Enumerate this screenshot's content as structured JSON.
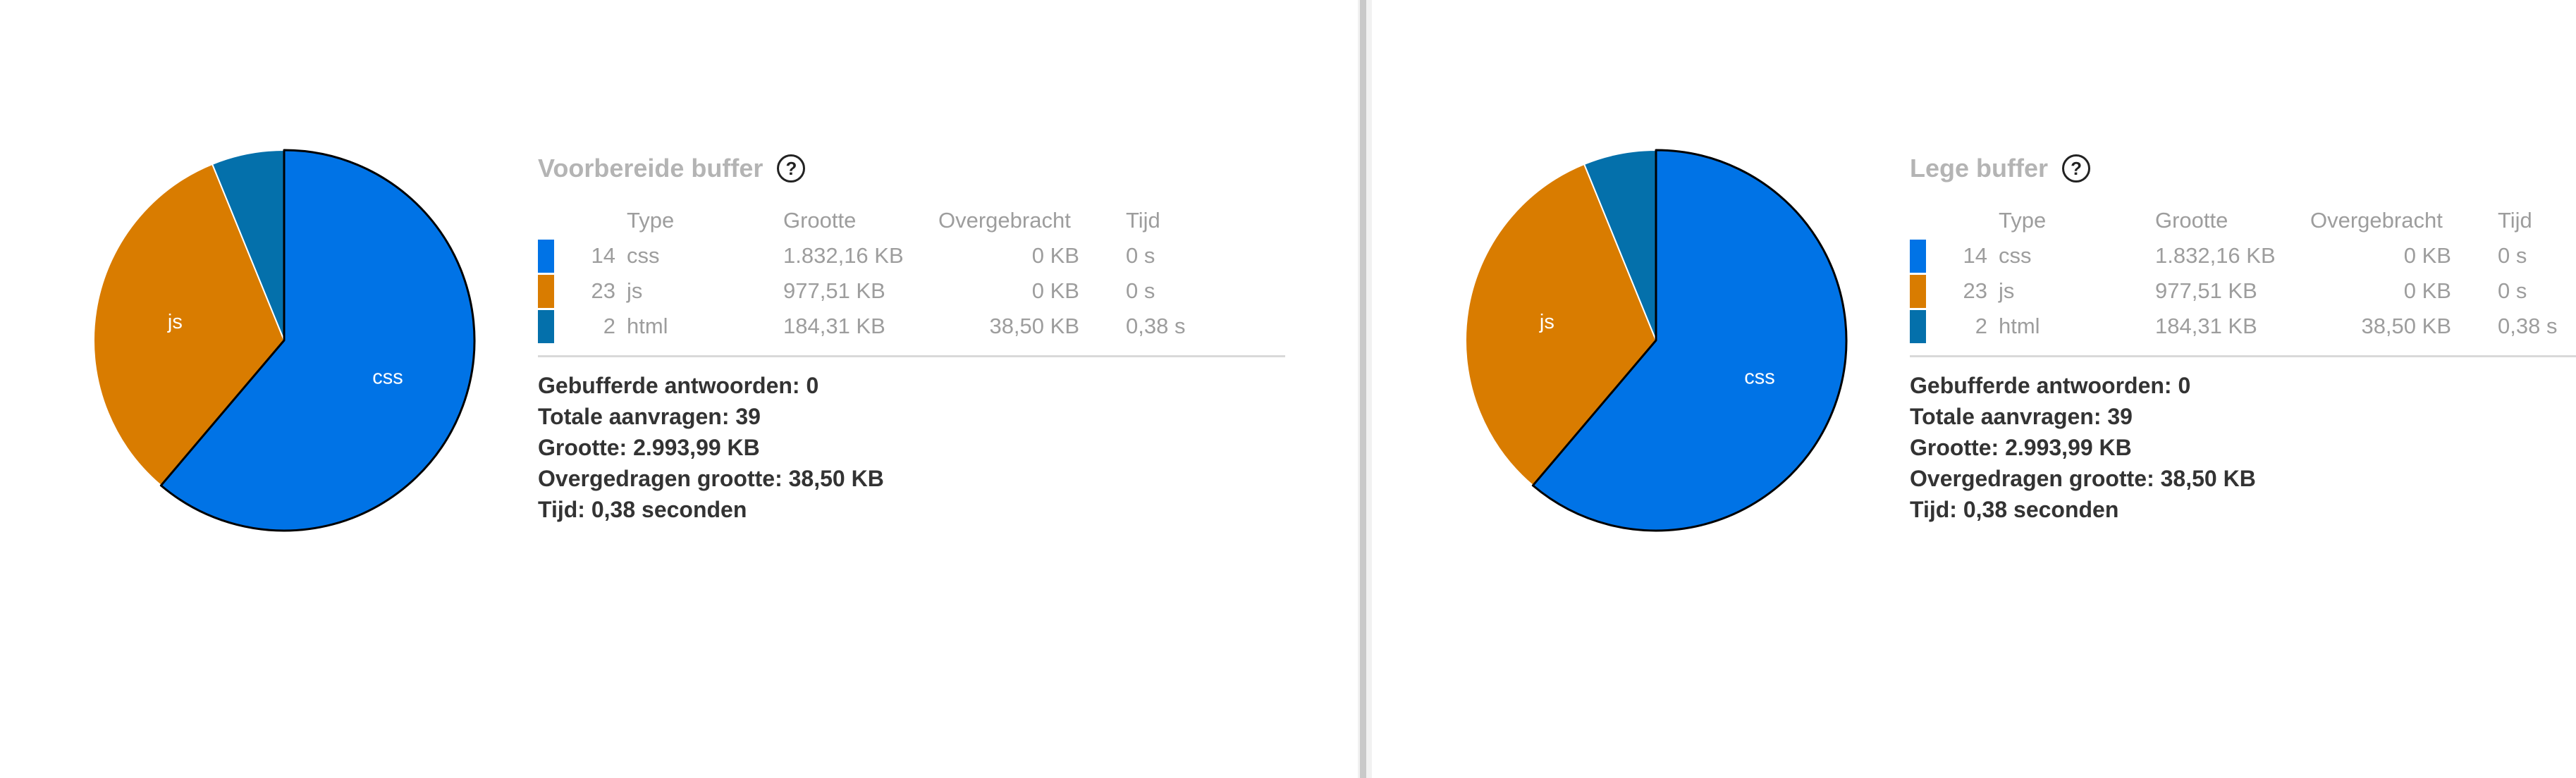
{
  "colors": {
    "css": "#0073e6",
    "js": "#d97c00",
    "html": "#0470ab",
    "title": "#b4b4b4",
    "text_muted": "#9d9d9d",
    "text_strong": "#333333"
  },
  "panels": [
    {
      "title": "Voorbereide buffer",
      "help_icon": "question-circle-icon",
      "help_glyph": "?",
      "table": {
        "headers": {
          "count": "",
          "type": "Type",
          "size": "Grootte",
          "transferred": "Overgebracht",
          "time": "Tijd"
        },
        "rows": [
          {
            "count": "14",
            "type": "css",
            "size": "1.832,16 KB",
            "transferred": "0 KB",
            "time": "0 s"
          },
          {
            "count": "23",
            "type": "js",
            "size": "977,51 KB",
            "transferred": "0 KB",
            "time": "0 s"
          },
          {
            "count": "2",
            "type": "html",
            "size": "184,31 KB",
            "transferred": "38,50 KB",
            "time": "0,38 s"
          }
        ]
      },
      "summary": {
        "cached": "Gebufferde antwoorden: 0",
        "requests": "Totale aanvragen: 39",
        "size": "Grootte: 2.993,99 KB",
        "transferred": "Overgedragen grootte: 38,50 KB",
        "time": "Tijd: 0,38 seconden"
      }
    },
    {
      "title": "Lege buffer",
      "help_icon": "question-circle-icon",
      "help_glyph": "?",
      "table": {
        "headers": {
          "count": "",
          "type": "Type",
          "size": "Grootte",
          "transferred": "Overgebracht",
          "time": "Tijd"
        },
        "rows": [
          {
            "count": "14",
            "type": "css",
            "size": "1.832,16 KB",
            "transferred": "0 KB",
            "time": "0 s"
          },
          {
            "count": "23",
            "type": "js",
            "size": "977,51 KB",
            "transferred": "0 KB",
            "time": "0 s"
          },
          {
            "count": "2",
            "type": "html",
            "size": "184,31 KB",
            "transferred": "38,50 KB",
            "time": "0,38 s"
          }
        ]
      },
      "summary": {
        "cached": "Gebufferde antwoorden: 0",
        "requests": "Totale aanvragen: 39",
        "size": "Grootte: 2.993,99 KB",
        "transferred": "Overgedragen grootte: 38,50 KB",
        "time": "Tijd: 0,38 seconden"
      }
    }
  ],
  "chart_data": [
    {
      "type": "pie",
      "categories": [
        "css",
        "js",
        "html"
      ],
      "values": [
        1832.16,
        977.51,
        184.31
      ],
      "slice_labels": [
        "css",
        "js",
        ""
      ],
      "colors": [
        "#0073e6",
        "#d97c00",
        "#0470ab"
      ],
      "highlighted": "css"
    },
    {
      "type": "pie",
      "categories": [
        "css",
        "js",
        "html"
      ],
      "values": [
        1832.16,
        977.51,
        184.31
      ],
      "slice_labels": [
        "css",
        "js",
        ""
      ],
      "colors": [
        "#0073e6",
        "#d97c00",
        "#0470ab"
      ],
      "highlighted": "css"
    }
  ]
}
